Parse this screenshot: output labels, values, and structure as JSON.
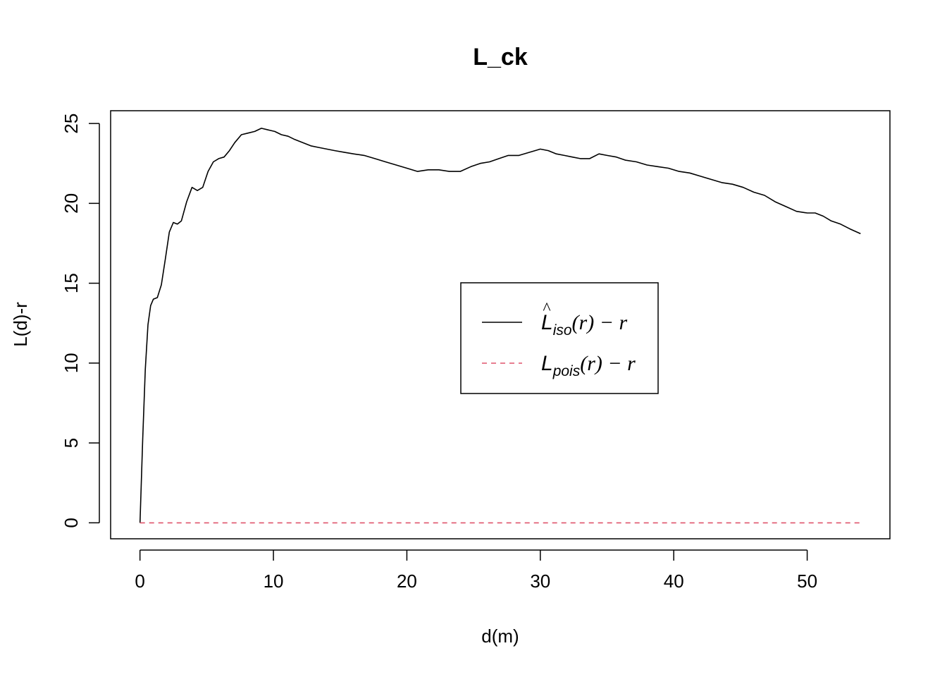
{
  "chart_data": {
    "type": "line",
    "title": "L_ck",
    "xlabel": "d(m)",
    "ylabel": "L(d)-r",
    "xlim": [
      -2.2,
      56.2
    ],
    "ylim": [
      -1.0,
      25.8
    ],
    "xticks": [
      0,
      10,
      20,
      30,
      40,
      50
    ],
    "yticks": [
      0,
      5,
      10,
      15,
      20,
      25
    ],
    "grid": false,
    "legend_position": "center",
    "series": [
      {
        "name": "L̂iso(r) − r",
        "legend": {
          "main": "L",
          "hat": "^",
          "sub": "iso",
          "rest": "(r) − r"
        },
        "color": "#000000",
        "dash": "solid",
        "x": [
          0,
          0.2,
          0.4,
          0.6,
          0.8,
          1.0,
          1.3,
          1.6,
          1.9,
          2.2,
          2.5,
          2.8,
          3.1,
          3.5,
          3.9,
          4.3,
          4.7,
          5.1,
          5.5,
          5.9,
          6.3,
          6.7,
          7.1,
          7.6,
          8.1,
          8.6,
          9.1,
          9.6,
          10.1,
          10.6,
          11.1,
          11.6,
          12.2,
          12.8,
          13.4,
          14.0,
          14.6,
          15.3,
          16.0,
          16.8,
          17.6,
          18.4,
          19.2,
          20.0,
          20.8,
          21.6,
          22.4,
          23.2,
          24.0,
          24.8,
          25.5,
          26.2,
          26.9,
          27.6,
          28.4,
          29.2,
          30.0,
          30.6,
          31.2,
          31.8,
          32.4,
          33.0,
          33.7,
          34.4,
          35.0,
          35.7,
          36.4,
          37.2,
          38.0,
          38.8,
          39.6,
          40.4,
          41.2,
          42.0,
          42.8,
          43.6,
          44.4,
          45.2,
          46.0,
          46.8,
          47.6,
          48.4,
          49.2,
          50.0,
          50.6,
          51.2,
          51.8,
          52.5,
          53.2,
          54.0
        ],
        "y": [
          0.0,
          5.2,
          9.6,
          12.4,
          13.6,
          14.0,
          14.1,
          14.9,
          16.5,
          18.2,
          18.8,
          18.7,
          18.9,
          20.1,
          21.0,
          20.8,
          21.0,
          22.0,
          22.6,
          22.8,
          22.9,
          23.3,
          23.8,
          24.3,
          24.4,
          24.5,
          24.7,
          24.6,
          24.5,
          24.3,
          24.2,
          24.0,
          23.8,
          23.6,
          23.5,
          23.4,
          23.3,
          23.2,
          23.1,
          23.0,
          22.8,
          22.6,
          22.4,
          22.2,
          22.0,
          22.1,
          22.1,
          22.0,
          22.0,
          22.3,
          22.5,
          22.6,
          22.8,
          23.0,
          23.0,
          23.2,
          23.4,
          23.3,
          23.1,
          23.0,
          22.9,
          22.8,
          22.8,
          23.1,
          23.0,
          22.9,
          22.7,
          22.6,
          22.4,
          22.3,
          22.2,
          22.0,
          21.9,
          21.7,
          21.5,
          21.3,
          21.2,
          21.0,
          20.7,
          20.5,
          20.1,
          19.8,
          19.5,
          19.4,
          19.4,
          19.2,
          18.9,
          18.7,
          18.4,
          18.1
        ]
      },
      {
        "name": "Lpois(r) − r",
        "legend": {
          "main": "L",
          "hat": "",
          "sub": "pois",
          "rest": "(r) − r"
        },
        "color": "#df536b",
        "dash": "dashed",
        "x": [
          0,
          54.0
        ],
        "y": [
          0,
          0
        ]
      }
    ]
  }
}
